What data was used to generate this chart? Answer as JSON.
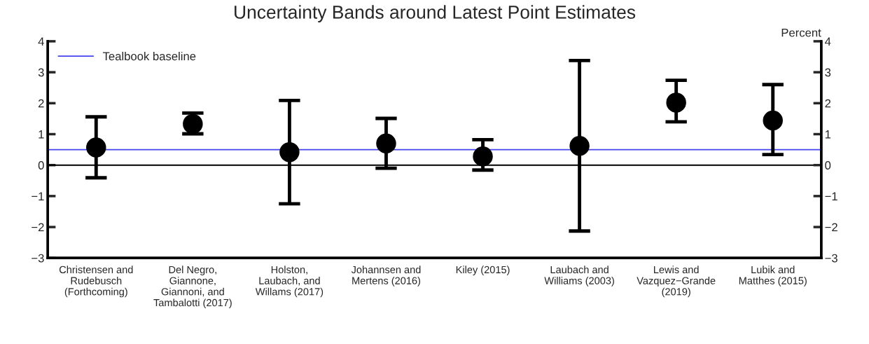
{
  "chart_data": {
    "type": "scatter",
    "title": "Uncertainty Bands around Latest Point Estimates",
    "y2label": "Percent",
    "categories": [
      "Christensen and\nRudebusch\n(Forthcoming)",
      "Del Negro,\nGiannone,\nGiannoni, and\nTambalotti (2017)",
      "Holston,\nLaubach, and\nWillams (2017)",
      "Johannsen and\nMertens (2016)",
      "Kiley (2015)",
      "Laubach and\nWilliams (2003)",
      "Lewis and\nVazquez−Grande\n(2019)",
      "Lubik and\nMatthes (2015)"
    ],
    "series": [
      {
        "color": "#000000",
        "values": [
          0.57,
          1.33,
          0.42,
          0.7,
          0.28,
          0.62,
          2.02,
          1.44
        ],
        "errors": [
          [
            -0.41,
            1.56
          ],
          [
            1.01,
            1.68
          ],
          [
            -1.25,
            2.09
          ],
          [
            -0.1,
            1.51
          ],
          [
            -0.16,
            0.82
          ],
          [
            -2.13,
            3.38
          ],
          [
            1.4,
            2.74
          ],
          [
            0.34,
            2.6
          ]
        ]
      }
    ],
    "ref_lines": [
      {
        "axis": "y",
        "value": 0.5,
        "label": "Tealbook baseline",
        "color": "#4444ee"
      },
      {
        "axis": "y",
        "value": 0,
        "color": "#000000"
      }
    ],
    "ylim": [
      -3,
      4
    ],
    "yticks": [
      {
        "value": -3,
        "label": "−3"
      },
      {
        "value": -2,
        "label": "−2"
      },
      {
        "value": -1,
        "label": "−1"
      },
      0,
      1,
      2,
      3,
      4
    ],
    "y2lim": [
      -3,
      4
    ],
    "y2ticks": [
      {
        "value": -3,
        "label": "−3"
      },
      {
        "value": -2,
        "label": "−2"
      },
      {
        "value": -1,
        "label": "−1"
      },
      0,
      1,
      2,
      3,
      4
    ],
    "marker": "circle",
    "grid": false,
    "legend": "top left"
  }
}
